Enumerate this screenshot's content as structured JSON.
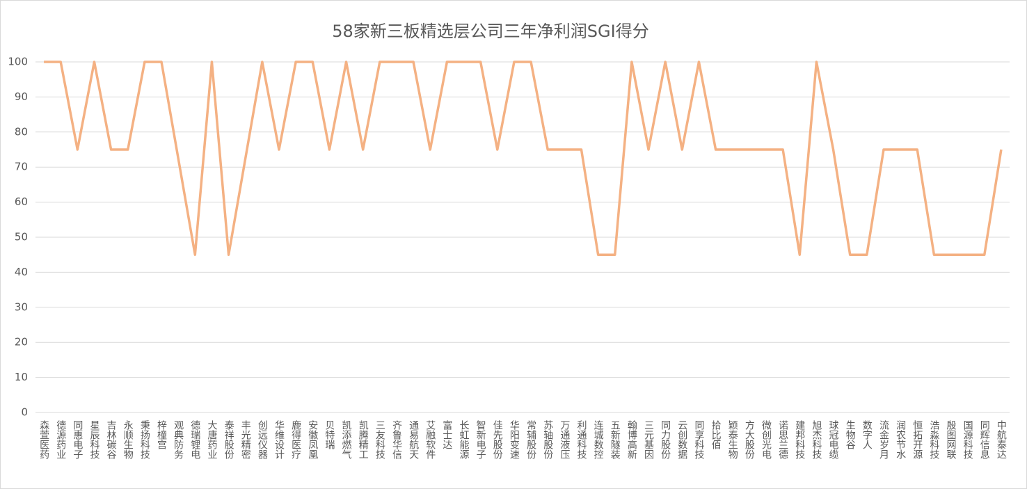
{
  "chart_data": {
    "type": "line",
    "title": "58家新三板精选层公司三年净利润SGI得分",
    "categories": [
      "森萱医药",
      "德源药业",
      "同惠电子",
      "星辰科技",
      "吉林碳谷",
      "永顺生物",
      "秉扬科技",
      "梓橦宫",
      "观典防务",
      "德瑞锂电",
      "大唐药业",
      "泰祥股份",
      "丰光精密",
      "创远仪器",
      "华维设计",
      "鹿得医疗",
      "安徽凤凰",
      "贝特瑞",
      "凯添燃气",
      "凯腾精工",
      "三友科技",
      "齐鲁华信",
      "通易航天",
      "艾融软件",
      "富士达",
      "长虹能源",
      "智新电子",
      "佳先股份",
      "华阳变速",
      "常辅股份",
      "苏轴股份",
      "万通液压",
      "利通科技",
      "连城数控",
      "五新隧装",
      "翰博高新",
      "三元基因",
      "同力股份",
      "云创数据",
      "同享科技",
      "拾比佰",
      "颖泰生物",
      "方大股份",
      "微创光电",
      "诺思兰德",
      "建邦科技",
      "旭杰科技",
      "球冠电缆",
      "生物谷",
      "数字人",
      "流金岁月",
      "润农节水",
      "恒拓开源",
      "浩淼科技",
      "殷图网联",
      "国源科技",
      "同辉信息",
      "中航泰达"
    ],
    "values": [
      100,
      100,
      75,
      100,
      75,
      75,
      100,
      100,
      72.5,
      45,
      100,
      45,
      72.5,
      100,
      75,
      100,
      100,
      75,
      100,
      75,
      100,
      100,
      100,
      75,
      100,
      100,
      100,
      75,
      100,
      100,
      75,
      75,
      75,
      45,
      45,
      100,
      75,
      100,
      75,
      100,
      75,
      75,
      75,
      75,
      75,
      45,
      100,
      75,
      45,
      45,
      75,
      75,
      75,
      45,
      45,
      45,
      45,
      75
    ],
    "color": "#f4b183",
    "ylim": [
      0,
      100
    ],
    "yticks": [
      0,
      10,
      20,
      30,
      40,
      50,
      60,
      70,
      80,
      90,
      100
    ],
    "grid": true
  }
}
